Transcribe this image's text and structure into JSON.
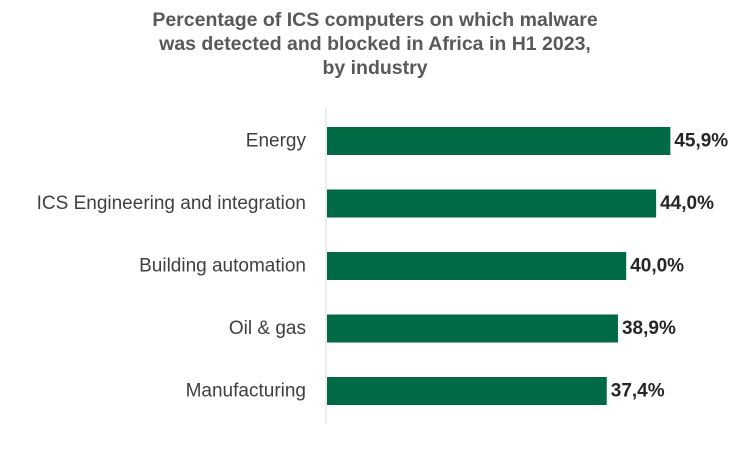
{
  "chart_data": {
    "type": "bar",
    "orientation": "horizontal",
    "title_lines": [
      "Percentage of ICS computers on which malware",
      "was detected and blocked in Africa in H1 2023,",
      "by industry"
    ],
    "categories": [
      "Energy",
      "ICS Engineering and integration",
      "Building automation",
      "Oil & gas",
      "Manufacturing"
    ],
    "values": [
      45.9,
      44.0,
      40.0,
      38.9,
      37.4
    ],
    "value_labels": [
      "45,9%",
      "44,0%",
      "40,0%",
      "38,9%",
      "37,4%"
    ],
    "xlim": [
      0,
      50
    ],
    "grid": false,
    "legend": "none",
    "bar_color": "#006A44"
  }
}
